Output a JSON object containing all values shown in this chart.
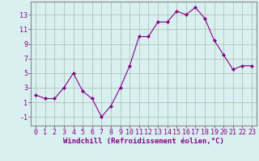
{
  "x": [
    0,
    1,
    2,
    3,
    4,
    5,
    6,
    7,
    8,
    9,
    10,
    11,
    12,
    13,
    14,
    15,
    16,
    17,
    18,
    19,
    20,
    21,
    22,
    23
  ],
  "y": [
    2,
    1.5,
    1.5,
    3,
    5,
    2.5,
    1.5,
    -1,
    0.5,
    3,
    6,
    10,
    10,
    12,
    12,
    13.5,
    13,
    14,
    12.5,
    9.5,
    7.5,
    5.5,
    6,
    6
  ],
  "line_color": "#880088",
  "marker": "D",
  "marker_size": 2.0,
  "bg_color": "#d8f0f0",
  "grid_color": "#aabbaa",
  "xlabel": "Windchill (Refroidissement éolien,°C)",
  "xlabel_fontsize": 6.5,
  "ylabel_ticks": [
    -1,
    1,
    3,
    5,
    7,
    9,
    11,
    13
  ],
  "xlim": [
    -0.5,
    23.5
  ],
  "ylim": [
    -2.2,
    14.8
  ],
  "xtick_labels": [
    "0",
    "1",
    "2",
    "3",
    "4",
    "5",
    "6",
    "7",
    "8",
    "9",
    "10",
    "11",
    "12",
    "13",
    "14",
    "15",
    "16",
    "17",
    "18",
    "19",
    "20",
    "21",
    "22",
    "23"
  ],
  "tick_fontsize": 6.0,
  "label_color": "#880088",
  "spine_color": "#888888"
}
